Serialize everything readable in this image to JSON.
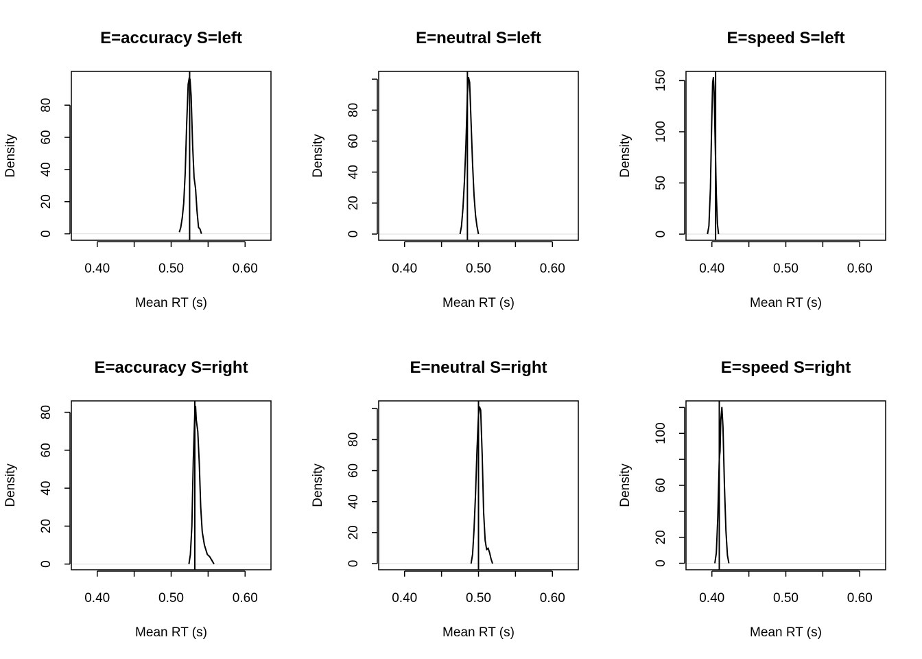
{
  "colors": {
    "curve": "#000000",
    "frame": "#000000",
    "zero_line": "#dddddd",
    "background": "#ffffff"
  },
  "chart_data": [
    {
      "type": "line",
      "title": "E=accuracy S=left",
      "xlabel": "Mean RT (s)",
      "ylabel": "Density",
      "xlim": [
        0.365,
        0.635
      ],
      "ylim": [
        -4,
        101
      ],
      "xticks": [
        0.4,
        0.45,
        0.5,
        0.55,
        0.6
      ],
      "xtick_labels": [
        "0.40",
        "",
        "0.50",
        "",
        "0.60"
      ],
      "yticks": [
        0,
        20,
        40,
        60,
        80
      ],
      "ytick_labels": [
        "0",
        "20",
        "40",
        "60",
        "80"
      ],
      "observed": 0.525,
      "x": [
        0.511,
        0.513,
        0.515,
        0.517,
        0.519,
        0.521,
        0.523,
        0.5245,
        0.5255,
        0.527,
        0.529,
        0.531,
        0.533,
        0.535,
        0.537,
        0.539,
        0.541
      ],
      "y": [
        1,
        4,
        10,
        19,
        38,
        68,
        93,
        97,
        96,
        86,
        55,
        35,
        28,
        14,
        4,
        3,
        0
      ]
    },
    {
      "type": "line",
      "title": "E=neutral S=left",
      "xlabel": "Mean RT (s)",
      "ylabel": "Density",
      "xlim": [
        0.365,
        0.635
      ],
      "ylim": [
        -4,
        105
      ],
      "xticks": [
        0.4,
        0.45,
        0.5,
        0.55,
        0.6
      ],
      "xtick_labels": [
        "0.40",
        "",
        "0.50",
        "",
        "0.60"
      ],
      "yticks": [
        0,
        20,
        40,
        60,
        80,
        100
      ],
      "ytick_labels": [
        "0",
        "20",
        "40",
        "60",
        "80",
        ""
      ],
      "observed": 0.485,
      "x": [
        0.475,
        0.477,
        0.479,
        0.481,
        0.483,
        0.485,
        0.4865,
        0.488,
        0.49,
        0.492,
        0.494,
        0.496,
        0.498,
        0.5
      ],
      "y": [
        0,
        5,
        17,
        34,
        58,
        90,
        101,
        98,
        72,
        45,
        25,
        12,
        5,
        0
      ]
    },
    {
      "type": "line",
      "title": "E=speed S=left",
      "xlabel": "Mean RT (s)",
      "ylabel": "Density",
      "xlim": [
        0.365,
        0.635
      ],
      "ylim": [
        -6,
        159
      ],
      "xticks": [
        0.4,
        0.45,
        0.5,
        0.55,
        0.6
      ],
      "xtick_labels": [
        "0.40",
        "",
        "0.50",
        "",
        "0.60"
      ],
      "yticks": [
        0,
        50,
        100,
        150
      ],
      "ytick_labels": [
        "0",
        "50",
        "100",
        "150"
      ],
      "observed": 0.405,
      "x": [
        0.394,
        0.396,
        0.398,
        0.3995,
        0.401,
        0.402,
        0.403,
        0.4045,
        0.406,
        0.4075,
        0.409
      ],
      "y": [
        0,
        8,
        45,
        100,
        148,
        153,
        138,
        88,
        38,
        10,
        0
      ]
    },
    {
      "type": "line",
      "title": "E=accuracy S=right",
      "xlabel": "Mean RT (s)",
      "ylabel": "Density",
      "xlim": [
        0.365,
        0.635
      ],
      "ylim": [
        -3,
        86
      ],
      "xticks": [
        0.4,
        0.45,
        0.5,
        0.55,
        0.6
      ],
      "xtick_labels": [
        "0.40",
        "",
        "0.50",
        "",
        "0.60"
      ],
      "yticks": [
        0,
        20,
        40,
        60,
        80
      ],
      "ytick_labels": [
        "0",
        "20",
        "40",
        "60",
        "80"
      ],
      "observed": 0.532,
      "x": [
        0.524,
        0.526,
        0.528,
        0.53,
        0.532,
        0.533,
        0.534,
        0.536,
        0.538,
        0.54,
        0.542,
        0.545,
        0.549,
        0.552,
        0.555,
        0.558
      ],
      "y": [
        0,
        5,
        20,
        55,
        80,
        83,
        76,
        70,
        53,
        30,
        17,
        10,
        5,
        4,
        2,
        0
      ]
    },
    {
      "type": "line",
      "title": "E=neutral S=right",
      "xlabel": "Mean RT (s)",
      "ylabel": "Density",
      "xlim": [
        0.365,
        0.635
      ],
      "ylim": [
        -4,
        105
      ],
      "xticks": [
        0.4,
        0.45,
        0.5,
        0.55,
        0.6
      ],
      "xtick_labels": [
        "0.40",
        "",
        "0.50",
        "",
        "0.60"
      ],
      "yticks": [
        0,
        20,
        40,
        60,
        80,
        100
      ],
      "ytick_labels": [
        "0",
        "20",
        "40",
        "60",
        "80",
        ""
      ],
      "observed": 0.5,
      "x": [
        0.49,
        0.492,
        0.494,
        0.496,
        0.498,
        0.5,
        0.5015,
        0.503,
        0.505,
        0.507,
        0.509,
        0.511,
        0.513,
        0.515,
        0.517,
        0.519
      ],
      "y": [
        0,
        6,
        22,
        45,
        73,
        96,
        101,
        99,
        70,
        33,
        15,
        9,
        10,
        7,
        3,
        0
      ]
    },
    {
      "type": "line",
      "title": "E=speed S=right",
      "xlabel": "Mean RT (s)",
      "ylabel": "Density",
      "xlim": [
        0.365,
        0.635
      ],
      "ylim": [
        -5,
        125
      ],
      "xticks": [
        0.4,
        0.45,
        0.5,
        0.55,
        0.6
      ],
      "xtick_labels": [
        "0.40",
        "",
        "0.50",
        "",
        "0.60"
      ],
      "yticks": [
        0,
        20,
        40,
        60,
        80,
        100,
        120
      ],
      "ytick_labels": [
        "0",
        "20",
        "",
        "60",
        "",
        "100",
        ""
      ],
      "observed": 0.41,
      "x": [
        0.404,
        0.406,
        0.408,
        0.41,
        0.411,
        0.412,
        0.4135,
        0.415,
        0.417,
        0.419,
        0.421,
        0.423
      ],
      "y": [
        0,
        8,
        35,
        80,
        86,
        110,
        120,
        105,
        60,
        25,
        6,
        0
      ]
    }
  ]
}
